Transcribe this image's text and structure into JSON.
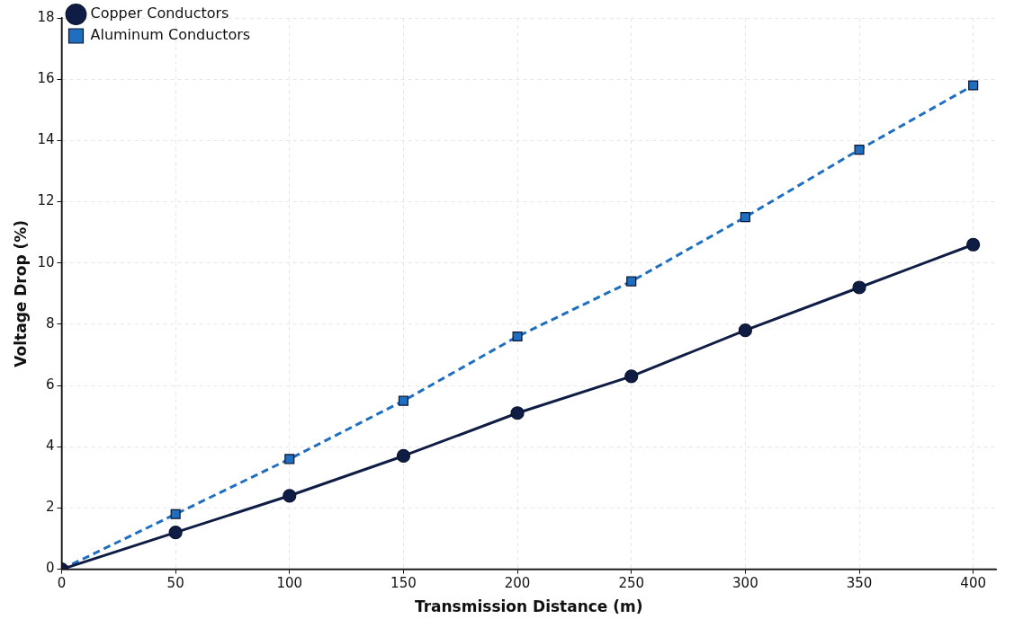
{
  "chart_data": {
    "type": "line",
    "xlabel": "Transmission Distance (m)",
    "ylabel": "Voltage Drop (%)",
    "x": [
      0,
      50,
      100,
      150,
      200,
      250,
      300,
      350,
      400
    ],
    "series": [
      {
        "name": "Copper Conductors",
        "color": "#0f1d45",
        "values": [
          0,
          1.2,
          2.4,
          3.7,
          5.1,
          6.3,
          7.8,
          9.2,
          10.6
        ],
        "marker": "circle",
        "line_style": "solid"
      },
      {
        "name": "Aluminum Conductors",
        "color": "#1f6fc1",
        "values": [
          0,
          1.8,
          3.6,
          5.5,
          7.6,
          9.4,
          11.5,
          13.7,
          15.8
        ],
        "marker": "square",
        "line_style": "dashed"
      }
    ],
    "xlim": [
      0,
      410
    ],
    "xticks": [
      0,
      50,
      100,
      150,
      200,
      250,
      300,
      350,
      400
    ],
    "ylim": [
      0,
      18
    ],
    "yticks": [
      0,
      2,
      4,
      6,
      8,
      10,
      12,
      14,
      16,
      18
    ],
    "grid": true,
    "legend": "top left"
  }
}
